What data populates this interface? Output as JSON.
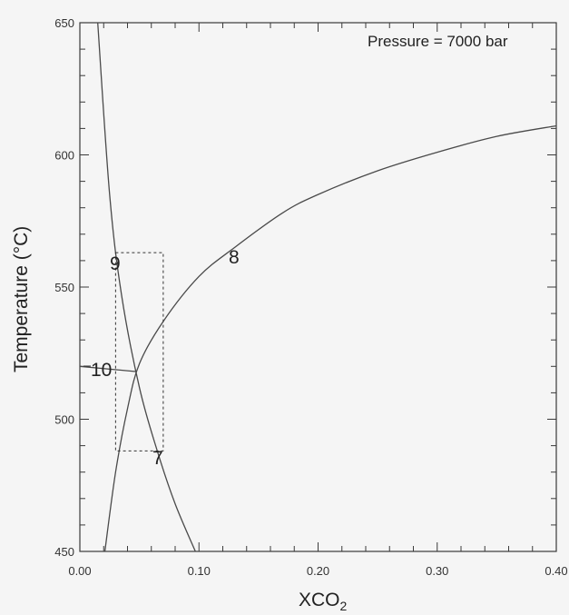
{
  "chart_data": {
    "type": "line",
    "title": "",
    "annotation": "Pressure = 7000 bar",
    "xlabel": "XCO",
    "xlabel_sub": "2",
    "ylabel": "Temperature (°C)",
    "xlim": [
      0.0,
      0.4
    ],
    "ylim": [
      450,
      650
    ],
    "x_ticks": [
      0.0,
      0.1,
      0.2,
      0.3,
      0.4
    ],
    "x_tick_labels": [
      "0.00",
      "0.10",
      "0.20",
      "0.30",
      "0.40"
    ],
    "y_ticks": [
      450,
      500,
      550,
      600,
      650
    ],
    "y_tick_labels": [
      "450",
      "500",
      "550",
      "600",
      "650"
    ],
    "grid": false,
    "series": [
      {
        "name": "8",
        "x": [
          0.021,
          0.03,
          0.04,
          0.05,
          0.07,
          0.1,
          0.13,
          0.17,
          0.2,
          0.25,
          0.3,
          0.35,
          0.4
        ],
        "y": [
          450,
          480,
          504,
          521,
          537,
          554,
          565,
          578,
          585,
          594,
          601,
          607,
          611
        ]
      },
      {
        "name": "9-7",
        "x": [
          0.015,
          0.025,
          0.035,
          0.05,
          0.065,
          0.08,
          0.097
        ],
        "y": [
          650,
          585,
          547,
          512,
          488,
          468,
          450
        ]
      },
      {
        "name": "10",
        "x": [
          0.0,
          0.048
        ],
        "y": [
          520,
          518
        ]
      }
    ],
    "curve_labels": [
      "7",
      "8",
      "9",
      "10"
    ],
    "box": {
      "x": [
        0.03,
        0.07
      ],
      "y": [
        488,
        563
      ]
    }
  }
}
